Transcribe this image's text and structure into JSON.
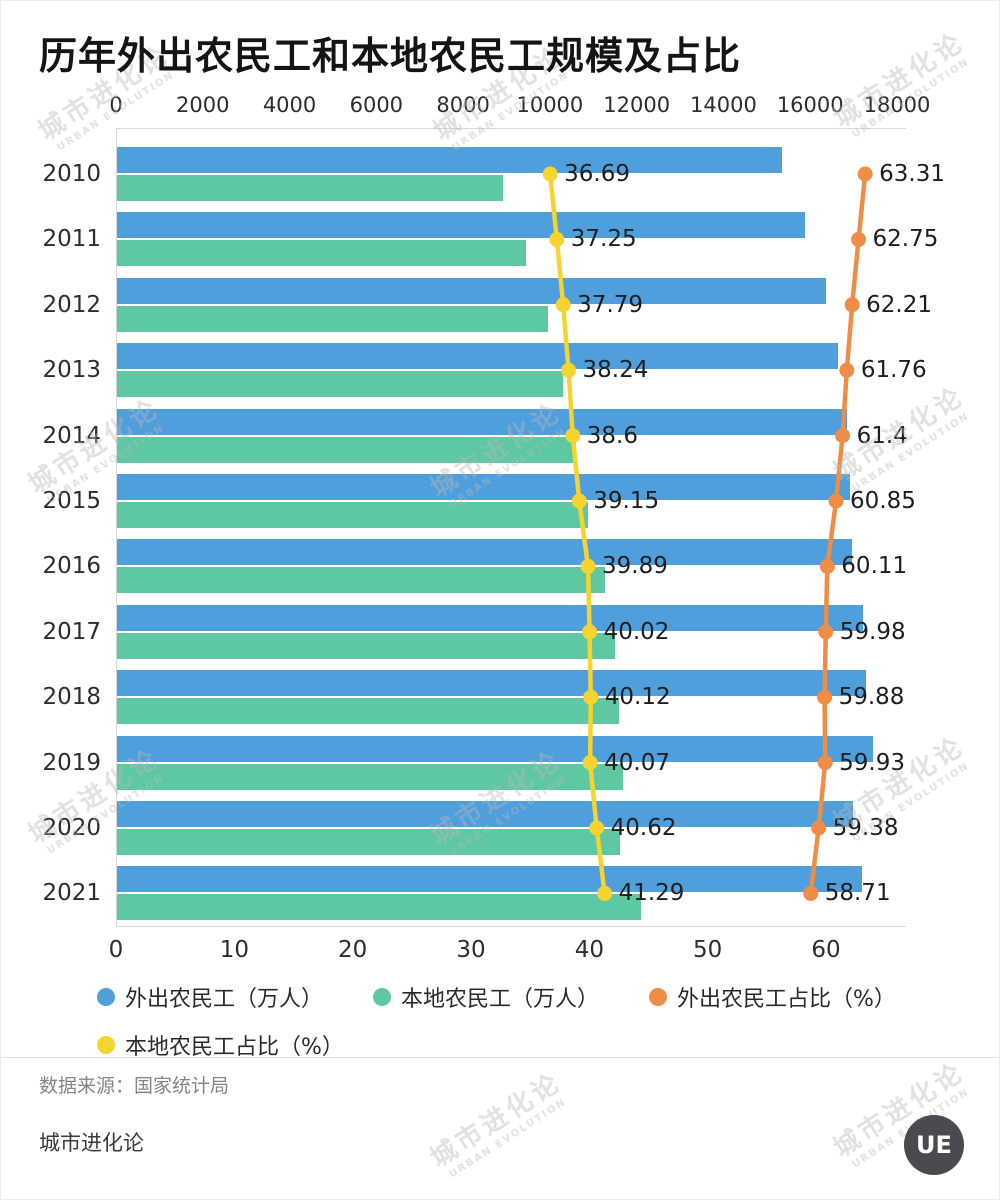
{
  "title": "历年外出农民工和本地农民工规模及占比",
  "watermark": {
    "line1": "城市进化论",
    "line2": "URBAN EVOLUTION"
  },
  "footer": {
    "source": "数据来源：国家统计局",
    "brand": "城市进化论",
    "logo_text": "UE"
  },
  "colors": {
    "outgoing_bar": "#4f9fdd",
    "local_bar": "#5dc8a1",
    "outgoing_share_line": "#ef8c45",
    "local_share_line": "#f6d32e",
    "text_dark": "#2d2d2d",
    "watermark_gray": "#b9b9b9"
  },
  "chart_data": {
    "type": "bar",
    "orientation": "horizontal",
    "title": "历年外出农民工和本地农民工规模及占比",
    "categories": [
      "2010",
      "2011",
      "2012",
      "2013",
      "2014",
      "2015",
      "2016",
      "2017",
      "2018",
      "2019",
      "2020",
      "2021"
    ],
    "top_axis": {
      "ticks": [
        0,
        2000,
        4000,
        6000,
        8000,
        10000,
        12000,
        14000,
        16000,
        18000
      ],
      "max": 18000
    },
    "bottom_axis": {
      "ticks": [
        0,
        10,
        20,
        30,
        40,
        50,
        60
      ],
      "max": 66
    },
    "grid": false,
    "legend_position": "bottom",
    "series": [
      {
        "name": "外出农民工（万人）",
        "type": "bar",
        "color": "#4f9fdd",
        "values": [
          15335,
          15863,
          16336,
          16610,
          16821,
          16884,
          16934,
          17185,
          17266,
          17425,
          16959,
          17172
        ]
      },
      {
        "name": "本地农民工（万人）",
        "type": "bar",
        "color": "#5dc8a1",
        "values": [
          8888,
          9415,
          9925,
          10284,
          10574,
          10863,
          11237,
          11467,
          11570,
          11652,
          11601,
          12079
        ]
      },
      {
        "name": "外出农民工占比（%）",
        "type": "line",
        "axis": "percent",
        "color": "#ef8c45",
        "values": [
          63.31,
          62.75,
          62.21,
          61.76,
          61.4,
          60.85,
          60.11,
          59.98,
          59.88,
          59.93,
          59.38,
          58.71
        ],
        "display_labels": [
          "63.31",
          "62.75",
          "62.21",
          "61.76",
          "61.4",
          "60.85",
          "60.11",
          "59.98",
          "59.88",
          "59.93",
          "59.38",
          "58.71"
        ]
      },
      {
        "name": "本地农民工占比（%）",
        "type": "line",
        "axis": "percent",
        "color": "#f6d32e",
        "values": [
          36.69,
          37.25,
          37.79,
          38.24,
          38.6,
          39.15,
          39.89,
          40.02,
          40.12,
          40.07,
          40.62,
          41.29
        ],
        "display_labels": [
          "36.69",
          "37.25",
          "37.79",
          "38.24",
          "38.6",
          "39.15",
          "39.89",
          "40.02",
          "40.12",
          "40.07",
          "40.62",
          "41.29"
        ]
      }
    ]
  }
}
